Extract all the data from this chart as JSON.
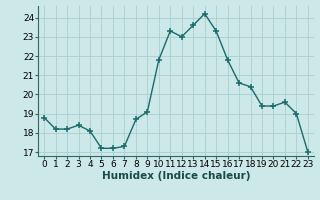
{
  "x": [
    0,
    1,
    2,
    3,
    4,
    5,
    6,
    7,
    8,
    9,
    10,
    11,
    12,
    13,
    14,
    15,
    16,
    17,
    18,
    19,
    20,
    21,
    22,
    23
  ],
  "y": [
    18.8,
    18.2,
    18.2,
    18.4,
    18.1,
    17.2,
    17.2,
    17.3,
    18.7,
    19.1,
    21.8,
    23.3,
    23.0,
    23.6,
    24.2,
    23.3,
    21.8,
    20.6,
    20.4,
    19.4,
    19.4,
    19.6,
    19.0,
    17.0
  ],
  "xlabel": "Humidex (Indice chaleur)",
  "ylim": [
    16.8,
    24.6
  ],
  "yticks": [
    17,
    18,
    19,
    20,
    21,
    22,
    23,
    24
  ],
  "xticks": [
    0,
    1,
    2,
    3,
    4,
    5,
    6,
    7,
    8,
    9,
    10,
    11,
    12,
    13,
    14,
    15,
    16,
    17,
    18,
    19,
    20,
    21,
    22,
    23
  ],
  "line_color": "#1a6b6b",
  "marker_color": "#1a6b6b",
  "bg_color": "#cce8e8",
  "grid_color": "#aacfcf",
  "axes_bg": "#cce8e8",
  "tick_label_fontsize": 6.5,
  "xlabel_fontsize": 7.5,
  "marker_size": 4,
  "line_width": 1.0
}
